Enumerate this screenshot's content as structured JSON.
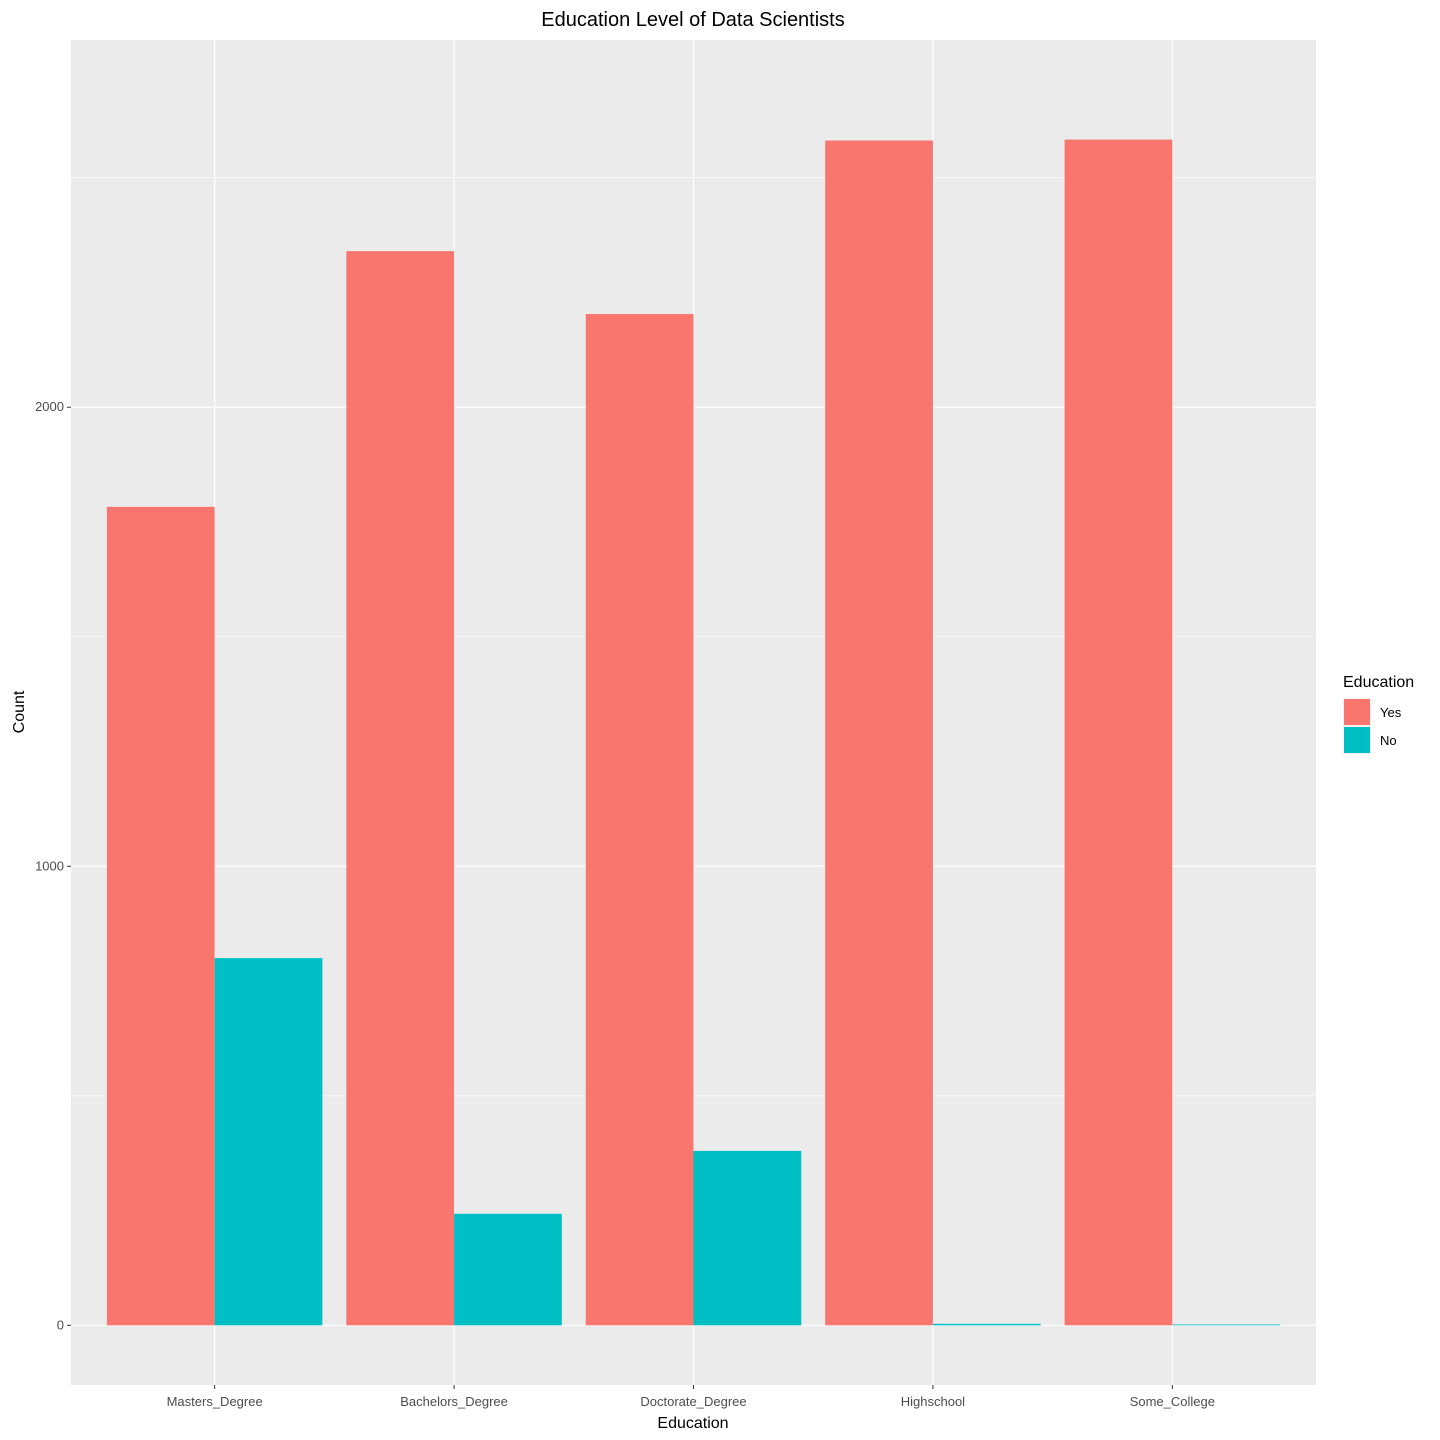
{
  "chart_data": {
    "type": "bar",
    "title": "Education Level of Data Scientists",
    "xlabel": "Education",
    "ylabel": "Count",
    "categories": [
      "Masters_Degree",
      "Bachelors_Degree",
      "Doctorate_Degree",
      "Highschool",
      "Some_College"
    ],
    "series": [
      {
        "name": "Yes",
        "color": "#F8766D",
        "values": [
          1783,
          2340,
          2203,
          2581,
          2583
        ]
      },
      {
        "name": "No",
        "color": "#00BFC4",
        "values": [
          800,
          243,
          380,
          2,
          0
        ]
      }
    ],
    "yticks": [
      0,
      1000,
      2000
    ],
    "ylim": [
      -130,
      2800
    ],
    "grid": true,
    "legend": {
      "title": "Education",
      "position": "right"
    }
  }
}
